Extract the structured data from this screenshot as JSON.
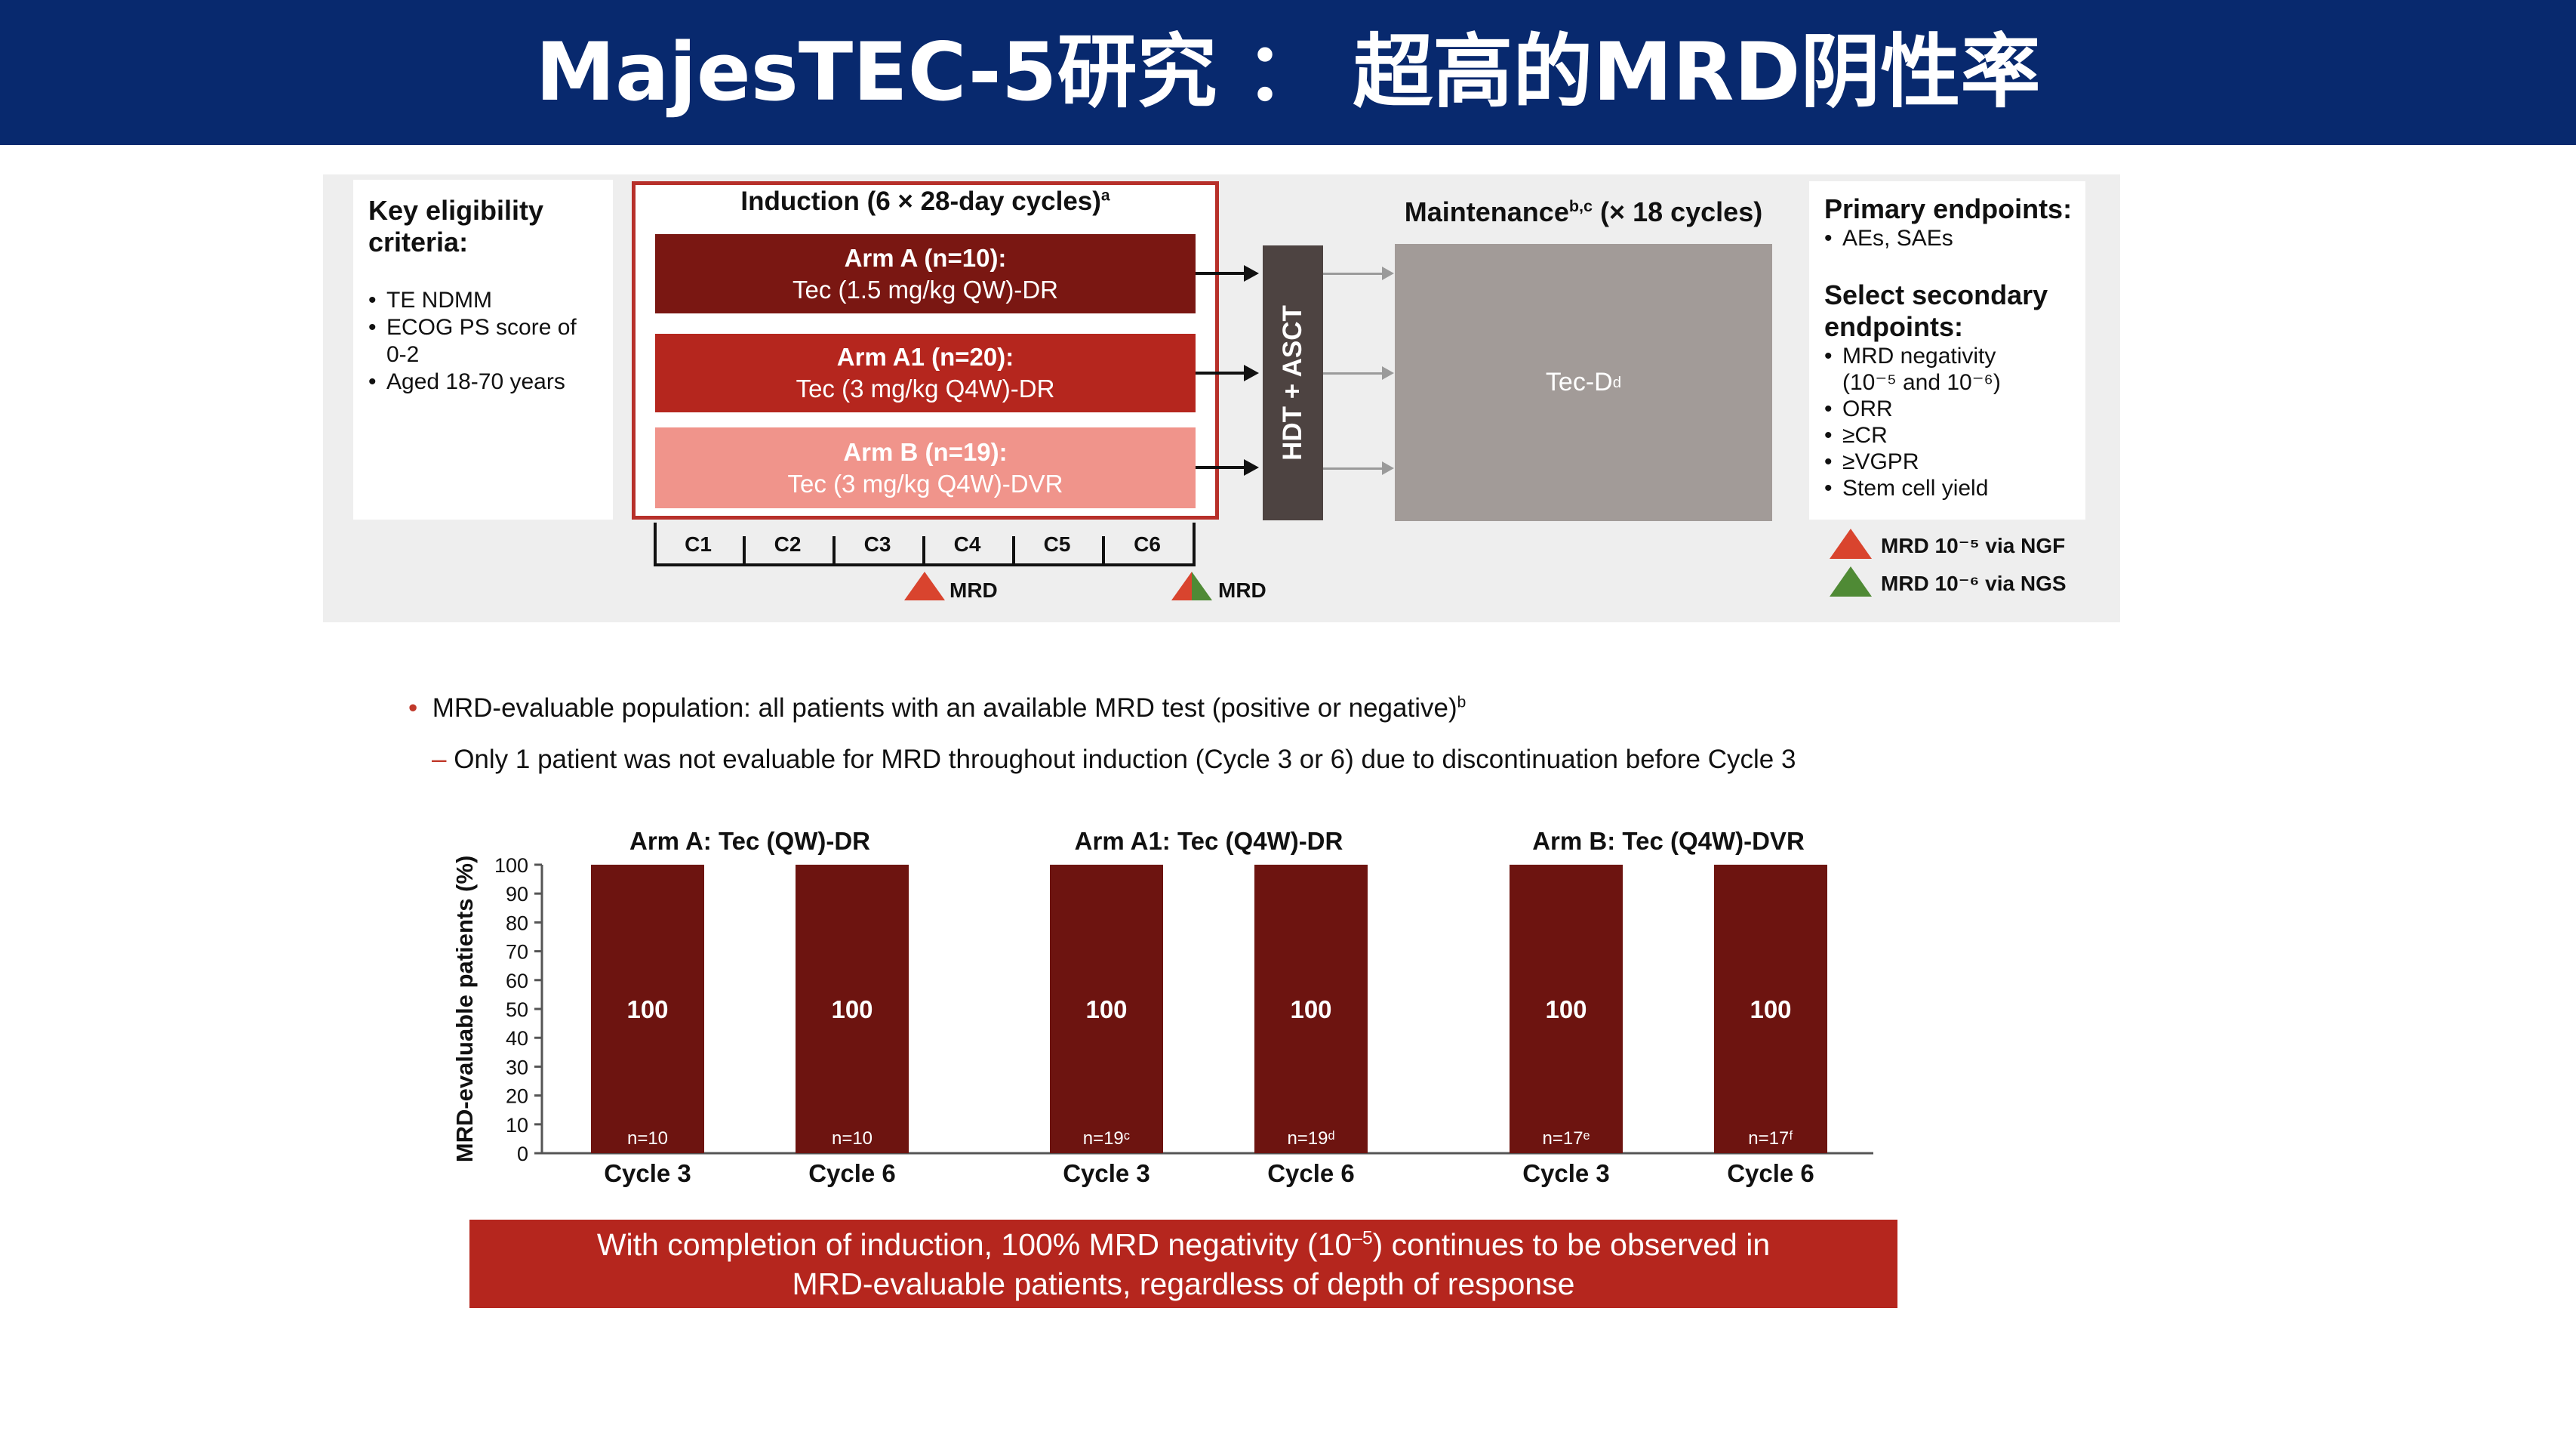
{
  "header": {
    "title": "MajesTEC-5研究 ： 超高的MRD阴性率"
  },
  "design": {
    "eligibility": {
      "title": "Key eligibility criteria:",
      "items": [
        "TE NDMM",
        "ECOG PS score of 0-2",
        "Aged 18-70 years"
      ]
    },
    "induction": {
      "title": "Induction (6 × 28-day cycles)",
      "title_sup": "a",
      "arms": [
        {
          "name": "Arm A (n=10):",
          "regimen": "Tec (1.5 mg/kg QW)-DR",
          "color": "#7a1712"
        },
        {
          "name": "Arm A1 (n=20):",
          "regimen": "Tec (3 mg/kg Q4W)-DR",
          "color": "#b5261e"
        },
        {
          "name": "Arm B (n=19):",
          "regimen": "Tec (3 mg/kg Q4W)-DVR",
          "color": "#f0948b"
        }
      ],
      "cycles": [
        "C1",
        "C2",
        "C3",
        "C4",
        "C5",
        "C6"
      ],
      "mrd_markers": [
        {
          "after_cycle": "C3",
          "label": "MRD",
          "kinds": [
            "NGF"
          ]
        },
        {
          "after_cycle": "C6",
          "label": "MRD",
          "kinds": [
            "NGF",
            "NGS"
          ]
        }
      ]
    },
    "hdt_label": "HDT + ASCT",
    "maintenance": {
      "title": "Maintenance",
      "title_sup": "b,c",
      "title_suffix": " (× 18 cycles)",
      "regimen": "Tec-D",
      "regimen_sup": "d"
    },
    "endpoints": {
      "primary_title": "Primary endpoints:",
      "primary_items": [
        "AEs, SAEs"
      ],
      "secondary_title": "Select secondary endpoints:",
      "secondary_items": [
        "MRD negativity (10⁻⁵ and 10⁻⁶)",
        "ORR",
        "≥CR",
        "≥VGPR",
        "Stem cell yield"
      ]
    },
    "legend": [
      {
        "label": "MRD 10⁻⁵ via NGF",
        "color": "#d9442e"
      },
      {
        "label": "MRD 10⁻⁶ via NGS",
        "color": "#4f8a35"
      }
    ]
  },
  "bullets": {
    "main": "MRD-evaluable population: all patients with an available MRD test (positive or negative)",
    "main_sup": "b",
    "sub": "Only 1 patient was not evaluable for MRD throughout induction (Cycle 3 or 6) due to discontinuation before Cycle 3"
  },
  "chart_data": {
    "type": "bar",
    "ylabel": "MRD-evaluable patients (%)",
    "ylim": [
      0,
      100
    ],
    "yticks": [
      0,
      10,
      20,
      30,
      40,
      50,
      60,
      70,
      80,
      90,
      100
    ],
    "bar_color": "#6d1410",
    "groups": [
      {
        "title": "Arm A: Tec (QW)-DR",
        "categories": [
          "Cycle 3",
          "Cycle 6"
        ],
        "values": [
          100,
          100
        ],
        "n_labels": [
          "n=10",
          "n=10"
        ]
      },
      {
        "title": "Arm A1: Tec (Q4W)-DR",
        "categories": [
          "Cycle 3",
          "Cycle 6"
        ],
        "values": [
          100,
          100
        ],
        "n_labels": [
          "n=19ᶜ",
          "n=19ᵈ"
        ]
      },
      {
        "title": "Arm B: Tec (Q4W)-DVR",
        "categories": [
          "Cycle 3",
          "Cycle 6"
        ],
        "values": [
          100,
          100
        ],
        "n_labels": [
          "n=17ᵉ",
          "n=17ᶠ"
        ]
      }
    ]
  },
  "banner": {
    "line1_a": "With completion of induction, 100% MRD negativity (10",
    "line1_sup": "–5",
    "line1_b": ") continues to be observed in",
    "line2": "MRD-evaluable patients, regardless of depth of response"
  }
}
